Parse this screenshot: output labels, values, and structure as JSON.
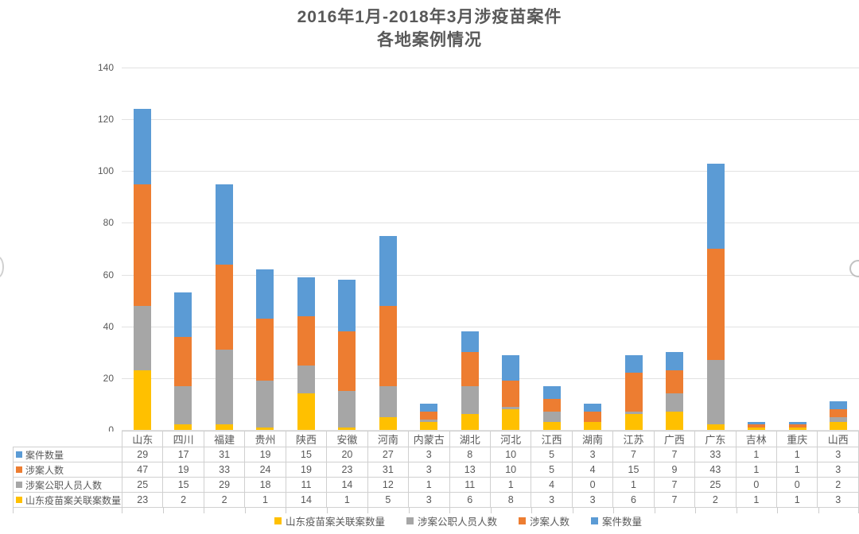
{
  "title": {
    "line1": "2016年1月-2018年3月涉疫苗案件",
    "line2": "各地案例情况"
  },
  "chart_data": {
    "type": "bar",
    "stacked": true,
    "title": "2016年1月-2018年3月涉疫苗案件 各地案例情况",
    "categories": [
      "山东",
      "四川",
      "福建",
      "贵州",
      "陕西",
      "安徽",
      "河南",
      "内蒙古",
      "湖北",
      "河北",
      "江西",
      "湖南",
      "江苏",
      "广西",
      "广东",
      "吉林",
      "重庆",
      "山西"
    ],
    "series": [
      {
        "name": "山东疫苗案关联案数量",
        "color": "#FFC000",
        "values": [
          23,
          2,
          2,
          1,
          14,
          1,
          5,
          3,
          6,
          8,
          3,
          3,
          6,
          7,
          2,
          1,
          1,
          3
        ]
      },
      {
        "name": "涉案公职人员人数",
        "color": "#A6A6A6",
        "values": [
          25,
          15,
          29,
          18,
          11,
          14,
          12,
          1,
          11,
          1,
          4,
          0,
          1,
          7,
          25,
          0,
          0,
          2
        ]
      },
      {
        "name": "涉案人数",
        "color": "#ED7D31",
        "values": [
          47,
          19,
          33,
          24,
          19,
          23,
          31,
          3,
          13,
          10,
          5,
          4,
          15,
          9,
          43,
          1,
          1,
          3
        ]
      },
      {
        "name": "案件数量",
        "color": "#5B9BD5",
        "values": [
          29,
          17,
          31,
          19,
          15,
          20,
          27,
          3,
          8,
          10,
          5,
          3,
          7,
          7,
          33,
          1,
          1,
          3
        ]
      }
    ],
    "stack_order_note": "series listed bottom-to-top of the stacked bars",
    "table_row_order": [
      "案件数量",
      "涉案人数",
      "涉案公职人员人数",
      "山东疫苗案关联案数量"
    ],
    "legend_order": [
      "山东疫苗案关联案数量",
      "涉案公职人员人数",
      "涉案人数",
      "案件数量"
    ],
    "y_ticks": [
      0,
      20,
      40,
      60,
      80,
      100,
      120,
      140
    ],
    "ylim": [
      0,
      140
    ],
    "xlabel": "",
    "ylabel": "",
    "grid": true,
    "legend_position": "bottom",
    "data_table_shown": true
  },
  "colors": {
    "title_text": "#595959",
    "axis_text": "#595959",
    "gridline": "#E2E2E2",
    "table_border": "#D0D0D0"
  }
}
